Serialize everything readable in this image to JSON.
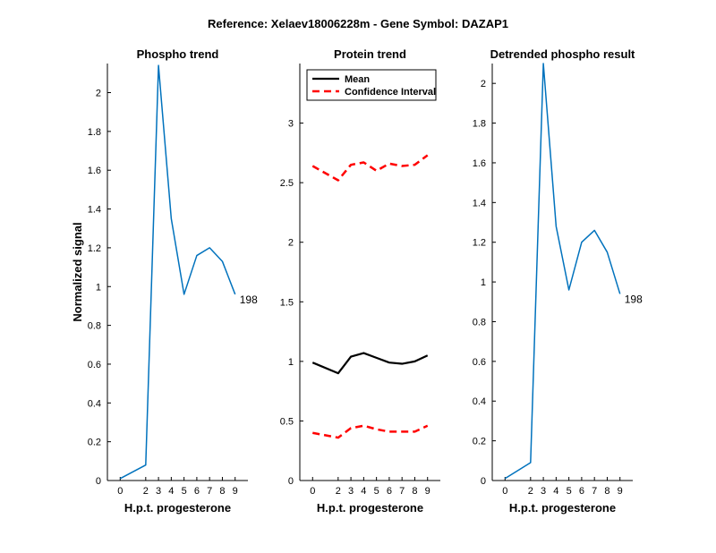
{
  "figure": {
    "suptitle": "Reference:  Xelaev18006228m - Gene Symbol:  DAZAP1"
  },
  "colors": {
    "phospho_line": "#0072BD",
    "mean_line": "#000000",
    "ci_line": "#FF0000",
    "axis": "#000000"
  },
  "chart_data": [
    {
      "type": "line",
      "title": "Phospho trend",
      "xlabel": "H.p.t. progesterone",
      "ylabel": "Normalized signal",
      "categories": [
        "0",
        "2",
        "3",
        "4",
        "5",
        "6",
        "7",
        "8",
        "9"
      ],
      "xlim": [
        -1,
        10
      ],
      "ylim": [
        0,
        2.15
      ],
      "yticks": [
        0,
        0.2,
        0.4,
        0.6,
        0.8,
        1,
        1.2,
        1.4,
        1.6,
        1.8,
        2
      ],
      "series": [
        {
          "values": [
            0.01,
            0.08,
            2.14,
            1.35,
            0.96,
            1.16,
            1.2,
            1.13,
            0.96
          ]
        }
      ],
      "annotation": "198",
      "grid": false
    },
    {
      "type": "line",
      "title": "Protein trend",
      "xlabel": "H.p.t. progesterone",
      "ylabel": "",
      "categories": [
        "0",
        "2",
        "3",
        "4",
        "5",
        "6",
        "7",
        "8",
        "9"
      ],
      "xlim": [
        -1,
        10
      ],
      "ylim": [
        0,
        3.5
      ],
      "yticks": [
        0,
        0.5,
        1,
        1.5,
        2,
        2.5,
        3
      ],
      "series": [
        {
          "name": "Mean",
          "style": "solid",
          "values": [
            0.99,
            0.9,
            1.04,
            1.07,
            1.03,
            0.99,
            0.98,
            1.0,
            1.05
          ]
        },
        {
          "name": "Confidence Interval",
          "style": "dashed",
          "values": [
            2.64,
            2.52,
            2.65,
            2.67,
            2.6,
            2.66,
            2.64,
            2.65,
            2.73
          ]
        },
        {
          "style": "dashed",
          "values": [
            0.4,
            0.36,
            0.44,
            0.46,
            0.43,
            0.41,
            0.41,
            0.41,
            0.46
          ]
        }
      ],
      "legend": "top-left",
      "grid": false
    },
    {
      "type": "line",
      "title": "Detrended phospho result",
      "xlabel": "H.p.t. progesterone",
      "ylabel": "",
      "categories": [
        "0",
        "2",
        "3",
        "4",
        "5",
        "6",
        "7",
        "8",
        "9"
      ],
      "xlim": [
        -1,
        10
      ],
      "ylim": [
        0,
        2.1
      ],
      "yticks": [
        0,
        0.2,
        0.4,
        0.6,
        0.8,
        1,
        1.2,
        1.4,
        1.6,
        1.8,
        2
      ],
      "series": [
        {
          "values": [
            0.01,
            0.09,
            2.1,
            1.28,
            0.96,
            1.2,
            1.26,
            1.15,
            0.94
          ]
        }
      ],
      "annotation": "198",
      "grid": false
    }
  ]
}
